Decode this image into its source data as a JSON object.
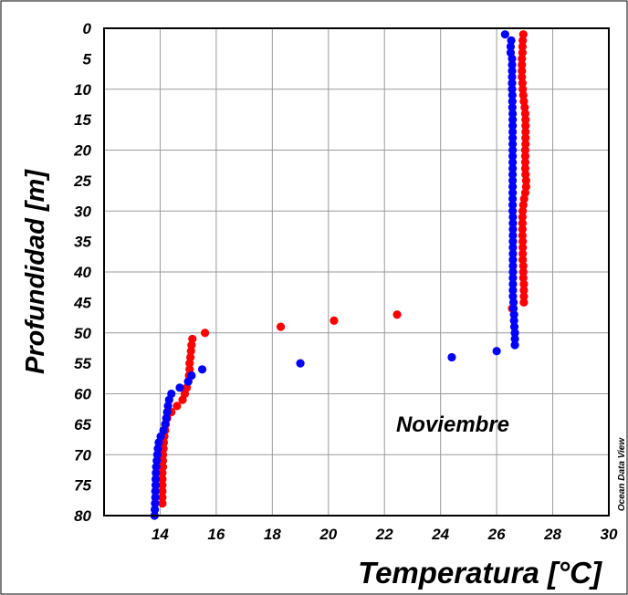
{
  "chart_data": {
    "type": "scatter",
    "xlabel": "Temperatura [°C]",
    "ylabel": "Profundidad [m]",
    "xlim": [
      12,
      30
    ],
    "ylim": [
      0,
      80
    ],
    "y_inverted": true,
    "grid": true,
    "x_ticks": [
      "14",
      "16",
      "18",
      "20",
      "22",
      "24",
      "26",
      "28",
      "30"
    ],
    "y_ticks": [
      "0",
      "5",
      "10",
      "15",
      "20",
      "25",
      "30",
      "35",
      "40",
      "45",
      "50",
      "55",
      "60",
      "65",
      "70",
      "75",
      "80"
    ],
    "annotation": "Noviembre",
    "credit": "Ocean Data View",
    "series": [
      {
        "color": "#ff0000",
        "points": [
          [
            26.95,
            1
          ],
          [
            26.93,
            2
          ],
          [
            26.92,
            3
          ],
          [
            26.92,
            4
          ],
          [
            26.9,
            5
          ],
          [
            26.9,
            6
          ],
          [
            26.9,
            7
          ],
          [
            26.9,
            8
          ],
          [
            26.92,
            9
          ],
          [
            26.93,
            10
          ],
          [
            26.95,
            11
          ],
          [
            26.97,
            12
          ],
          [
            27.0,
            13
          ],
          [
            27.02,
            14
          ],
          [
            27.03,
            15
          ],
          [
            27.03,
            16
          ],
          [
            27.03,
            17
          ],
          [
            27.03,
            18
          ],
          [
            27.03,
            19
          ],
          [
            27.02,
            20
          ],
          [
            27.02,
            21
          ],
          [
            27.02,
            22
          ],
          [
            27.02,
            23
          ],
          [
            27.03,
            24
          ],
          [
            27.05,
            25
          ],
          [
            27.05,
            26
          ],
          [
            27.02,
            27
          ],
          [
            26.98,
            28
          ],
          [
            26.95,
            29
          ],
          [
            26.93,
            30
          ],
          [
            26.92,
            31
          ],
          [
            26.92,
            32
          ],
          [
            26.92,
            33
          ],
          [
            26.92,
            34
          ],
          [
            26.93,
            35
          ],
          [
            26.93,
            36
          ],
          [
            26.93,
            37
          ],
          [
            26.93,
            38
          ],
          [
            26.95,
            39
          ],
          [
            26.95,
            40
          ],
          [
            26.95,
            41
          ],
          [
            26.97,
            42
          ],
          [
            26.97,
            43
          ],
          [
            26.97,
            44
          ],
          [
            26.97,
            45
          ],
          [
            26.55,
            46
          ],
          [
            22.45,
            47
          ],
          [
            20.2,
            48
          ],
          [
            18.3,
            49
          ],
          [
            15.6,
            50
          ],
          [
            15.15,
            51
          ],
          [
            15.12,
            52
          ],
          [
            15.1,
            53
          ],
          [
            15.08,
            54
          ],
          [
            15.05,
            55
          ],
          [
            15.05,
            56
          ],
          [
            15.03,
            57
          ],
          [
            15.0,
            58
          ],
          [
            14.95,
            59
          ],
          [
            14.88,
            60
          ],
          [
            14.8,
            61
          ],
          [
            14.6,
            62
          ],
          [
            14.4,
            63
          ],
          [
            14.25,
            64
          ],
          [
            14.2,
            65
          ],
          [
            14.18,
            66
          ],
          [
            14.15,
            67
          ],
          [
            14.13,
            68
          ],
          [
            14.12,
            69
          ],
          [
            14.1,
            70
          ],
          [
            14.1,
            71
          ],
          [
            14.1,
            72
          ],
          [
            14.08,
            73
          ],
          [
            14.08,
            74
          ],
          [
            14.08,
            75
          ],
          [
            14.08,
            76
          ],
          [
            14.08,
            77
          ],
          [
            14.08,
            78
          ]
        ]
      },
      {
        "color": "#0000ff",
        "points": [
          [
            26.3,
            1
          ],
          [
            26.52,
            2
          ],
          [
            26.5,
            3
          ],
          [
            26.5,
            4
          ],
          [
            26.55,
            5
          ],
          [
            26.55,
            6
          ],
          [
            26.55,
            7
          ],
          [
            26.55,
            8
          ],
          [
            26.55,
            9
          ],
          [
            26.55,
            10
          ],
          [
            26.56,
            11
          ],
          [
            26.56,
            12
          ],
          [
            26.56,
            13
          ],
          [
            26.57,
            14
          ],
          [
            26.57,
            15
          ],
          [
            26.57,
            16
          ],
          [
            26.57,
            17
          ],
          [
            26.57,
            18
          ],
          [
            26.57,
            19
          ],
          [
            26.57,
            20
          ],
          [
            26.57,
            21
          ],
          [
            26.57,
            22
          ],
          [
            26.57,
            23
          ],
          [
            26.57,
            24
          ],
          [
            26.57,
            25
          ],
          [
            26.57,
            26
          ],
          [
            26.57,
            27
          ],
          [
            26.57,
            28
          ],
          [
            26.57,
            29
          ],
          [
            26.57,
            30
          ],
          [
            26.58,
            31
          ],
          [
            26.58,
            32
          ],
          [
            26.58,
            33
          ],
          [
            26.58,
            34
          ],
          [
            26.58,
            35
          ],
          [
            26.58,
            36
          ],
          [
            26.58,
            37
          ],
          [
            26.58,
            38
          ],
          [
            26.58,
            39
          ],
          [
            26.58,
            40
          ],
          [
            26.58,
            41
          ],
          [
            26.58,
            42
          ],
          [
            26.58,
            43
          ],
          [
            26.58,
            44
          ],
          [
            26.6,
            45
          ],
          [
            26.6,
            46
          ],
          [
            26.62,
            47
          ],
          [
            26.62,
            48
          ],
          [
            26.63,
            49
          ],
          [
            26.65,
            50
          ],
          [
            26.65,
            51
          ],
          [
            26.65,
            52
          ],
          [
            26.0,
            53
          ],
          [
            24.4,
            54
          ],
          [
            19.0,
            55
          ],
          [
            15.5,
            56
          ],
          [
            15.12,
            57
          ],
          [
            15.0,
            58
          ],
          [
            14.7,
            59
          ],
          [
            14.4,
            60
          ],
          [
            14.32,
            61
          ],
          [
            14.28,
            62
          ],
          [
            14.25,
            63
          ],
          [
            14.22,
            64
          ],
          [
            14.18,
            65
          ],
          [
            14.12,
            66
          ],
          [
            14.02,
            67
          ],
          [
            13.95,
            68
          ],
          [
            13.92,
            69
          ],
          [
            13.9,
            70
          ],
          [
            13.88,
            71
          ],
          [
            13.86,
            72
          ],
          [
            13.85,
            73
          ],
          [
            13.84,
            74
          ],
          [
            13.84,
            75
          ],
          [
            13.83,
            76
          ],
          [
            13.83,
            77
          ],
          [
            13.82,
            78
          ],
          [
            13.81,
            79
          ],
          [
            13.8,
            80
          ]
        ]
      }
    ]
  }
}
